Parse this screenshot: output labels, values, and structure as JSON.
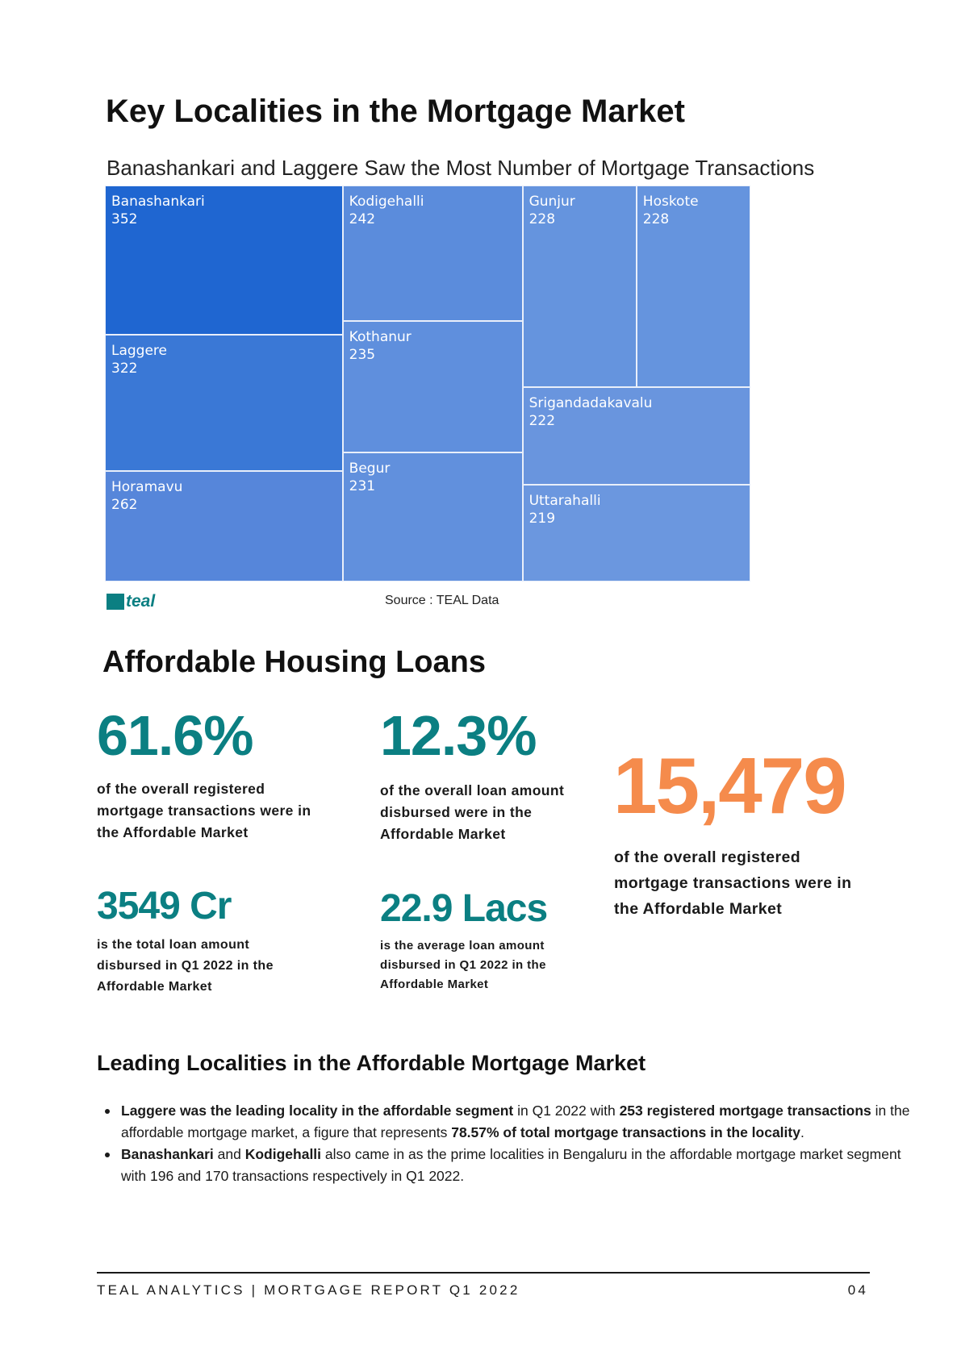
{
  "page": {
    "title": "Key Localities in the Mortgage Market"
  },
  "chart_data": {
    "type": "treemap",
    "title": "Banashankari and Laggere Saw the Most Number of Mortgage Transactions",
    "source": "Source : TEAL Data",
    "logo_text": "teal",
    "items": [
      {
        "name": "Banashankari",
        "value": 352,
        "color": "#1f66d1"
      },
      {
        "name": "Laggere",
        "value": 322,
        "color": "#3a78d6"
      },
      {
        "name": "Horamavu",
        "value": 262,
        "color": "#5686da"
      },
      {
        "name": "Kodigehalli",
        "value": 242,
        "color": "#5b8cdc"
      },
      {
        "name": "Kothanur",
        "value": 235,
        "color": "#5f8fdd"
      },
      {
        "name": "Begur",
        "value": 231,
        "color": "#6190dd"
      },
      {
        "name": "Gunjur",
        "value": 228,
        "color": "#6594de"
      },
      {
        "name": "Hoskote",
        "value": 228,
        "color": "#6594de"
      },
      {
        "name": "Srigandadakavalu",
        "value": 222,
        "color": "#6995de"
      },
      {
        "name": "Uttarahalli",
        "value": 219,
        "color": "#6b97df"
      }
    ]
  },
  "affordable": {
    "heading": "Affordable Housing Loans",
    "stats": [
      {
        "value": "61.6%",
        "desc": [
          "of the overall registered",
          "mortgage transactions were in",
          "the Affordable Market"
        ]
      },
      {
        "value": "12.3%",
        "desc": [
          "of the overall loan amount",
          "disbursed were in the",
          "Affordable Market"
        ]
      },
      {
        "value": "15,479",
        "desc": [
          "of the overall registered",
          "mortgage transactions were in",
          "the Affordable Market"
        ]
      },
      {
        "value": "3549 Cr",
        "desc": [
          "is the total loan amount",
          "disbursed in Q1 2022 in the",
          "Affordable Market"
        ]
      },
      {
        "value": "22.9 Lacs",
        "desc": [
          "is the average loan amount",
          "disbursed in Q1 2022 in the",
          "Affordable Market"
        ]
      }
    ],
    "accent_teal": "#0b7f82",
    "accent_orange": "#f58b4c"
  },
  "leading": {
    "heading": "Leading Localities in the Affordable Mortgage Market",
    "bullet1": {
      "b1": "Laggere was the leading locality in the affordable segment",
      "t1": " in Q1 2022 with ",
      "b2": "253 registered mortgage transactions",
      "t2": " in the affordable mortgage market, a figure that represents ",
      "b3": "78.57% of total mortgage transactions in the locality",
      "t3": "."
    },
    "bullet2": {
      "b1": "Banashankari",
      "t1": " and ",
      "b2": "Kodigehalli",
      "t2": " also came in as the prime localities in Bengaluru in the affordable mortgage market segment  with 196 and 170 transactions respectively in Q1 2022."
    }
  },
  "footer": {
    "left": "TEAL ANALYTICS | MORTGAGE REPORT Q1 2022",
    "right": "04"
  }
}
